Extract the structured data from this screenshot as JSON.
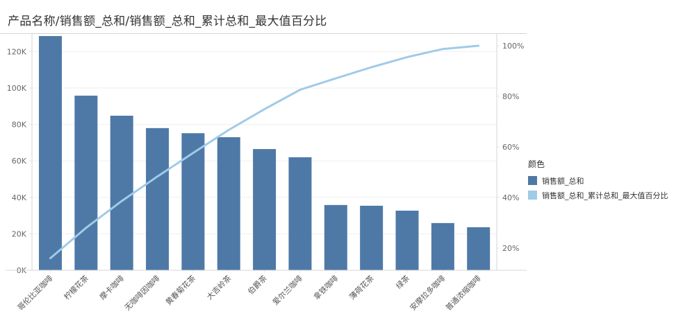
{
  "title": "产品名称/销售额_总和/销售额_总和_累计总和_最大值百分比",
  "legend": {
    "title": "颜色",
    "items": [
      {
        "label": "销售额_总和",
        "color": "#4e79a7"
      },
      {
        "label": "销售额_总和_累计总和_最大值百分比",
        "color": "#a0cbe8"
      }
    ]
  },
  "chart_data": {
    "type": "bar+line",
    "title": "产品名称/销售额_总和/销售额_总和_累计总和_最大值百分比",
    "xlabel": "",
    "categories": [
      "哥伦比亚咖啡",
      "柠檬花茶",
      "摩卡咖啡",
      "无咖啡因咖啡",
      "黄春菊花茶",
      "大吉岭茶",
      "伯爵茶",
      "爱尔兰咖啡",
      "拿铁咖啡",
      "薄荷花茶",
      "绿茶",
      "安摩拉多咖啡",
      "普通浓缩咖啡"
    ],
    "series": [
      {
        "name": "销售额_总和",
        "type": "bar",
        "axis": "left",
        "color": "#4e79a7",
        "values": [
          128500,
          95800,
          84800,
          78000,
          75200,
          73000,
          66500,
          62000,
          35800,
          35400,
          32700,
          25900,
          23600
        ]
      },
      {
        "name": "销售额_总和_累计总和_最大值百分比",
        "type": "line",
        "axis": "right",
        "color": "#a0cbe8",
        "values": [
          16.0,
          28.0,
          38.6,
          48.3,
          57.6,
          66.7,
          74.9,
          82.6,
          87.1,
          91.5,
          95.5,
          98.7,
          100.0
        ]
      }
    ],
    "left_axis": {
      "ticks": [
        "0K",
        "20K",
        "40K",
        "60K",
        "80K",
        "100K",
        "120K"
      ],
      "ylim": [
        0,
        130000
      ]
    },
    "right_axis": {
      "ticks": [
        "20%",
        "40%",
        "60%",
        "80%",
        "100%"
      ],
      "ylim": [
        8.8,
        103.5
      ]
    },
    "grid": true,
    "legend_position": "right"
  }
}
